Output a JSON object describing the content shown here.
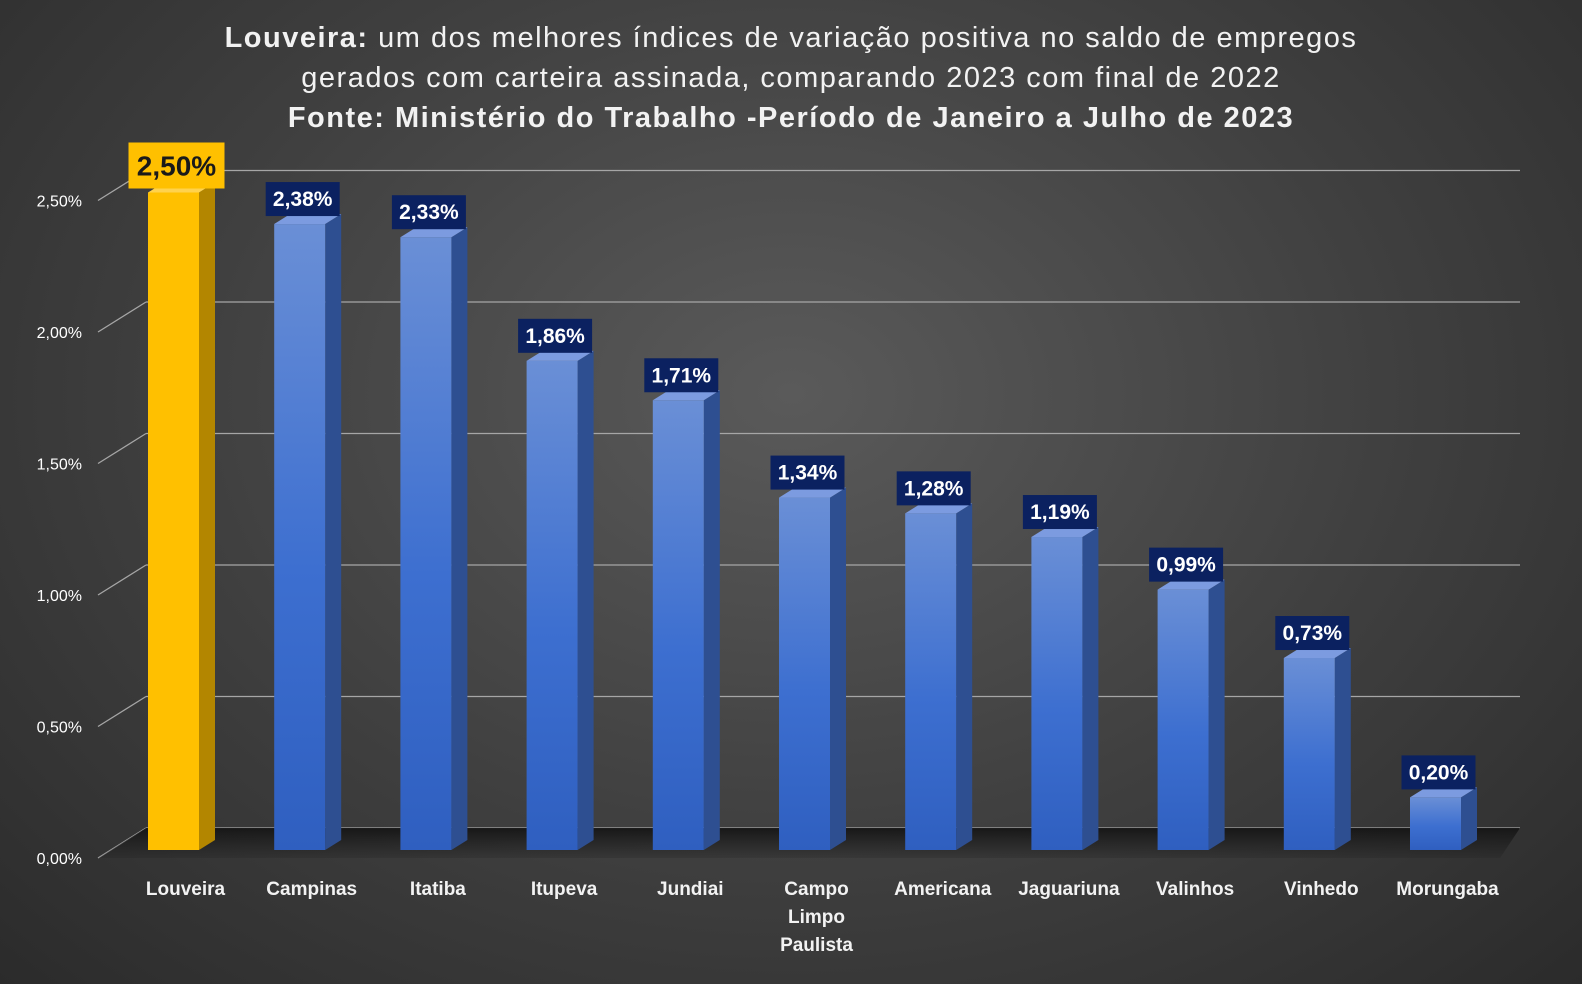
{
  "title": {
    "line1_bold": "Louveira:",
    "line1_rest": " um dos melhores índices de variação positiva no saldo de empregos",
    "line2": "gerados com carteira assinada, comparando 2023 com final de 2022",
    "line3": "Fonte: Ministério do Trabalho -Período de Janeiro a Julho de 2023"
  },
  "colors": {
    "highlight_bar": "#ffc000",
    "bar": "#4472c4",
    "label_bg": "#0b2160",
    "gridline": "#a6a6a6",
    "text": "#ffffff"
  },
  "chart_data": {
    "type": "bar",
    "title": "Louveira: um dos melhores índices de variação positiva no saldo de empregos gerados com carteira assinada, comparando 2023 com final de 2022",
    "subtitle": "Fonte: Ministério do Trabalho -Período de Janeiro a Julho de 2023",
    "xlabel": "",
    "ylabel": "",
    "categories": [
      "Louveira",
      "Campinas",
      "Itatiba",
      "Itupeva",
      "Jundiai",
      "Campo Limpo Paulista",
      "Americana",
      "Jaguariuna",
      "Valinhos",
      "Vinhedo",
      "Morungaba"
    ],
    "category_label_lines": [
      [
        "Louveira"
      ],
      [
        "Campinas"
      ],
      [
        "Itatiba"
      ],
      [
        "Itupeva"
      ],
      [
        "Jundiai"
      ],
      [
        "Campo",
        "Limpo",
        "Paulista"
      ],
      [
        "Americana"
      ],
      [
        "Jaguariuna"
      ],
      [
        "Valinhos"
      ],
      [
        "Vinhedo"
      ],
      [
        "Morungaba"
      ]
    ],
    "values": [
      2.5,
      2.38,
      2.33,
      1.86,
      1.71,
      1.34,
      1.28,
      1.19,
      0.99,
      0.73,
      0.2
    ],
    "data_labels": [
      "2,50%",
      "2,38%",
      "2,33%",
      "1,86%",
      "1,71%",
      "1,34%",
      "1,28%",
      "1,19%",
      "0,99%",
      "0,73%",
      "0,20%"
    ],
    "highlight_index": 0,
    "ylim": [
      0,
      2.5
    ],
    "yticks": [
      0,
      0.5,
      1.0,
      1.5,
      2.0,
      2.5
    ],
    "ytick_labels": [
      "0,00%",
      "0,50%",
      "1,00%",
      "1,50%",
      "2,00%",
      "2,50%"
    ],
    "grid": true,
    "legend": "none",
    "style": "3d-column"
  }
}
